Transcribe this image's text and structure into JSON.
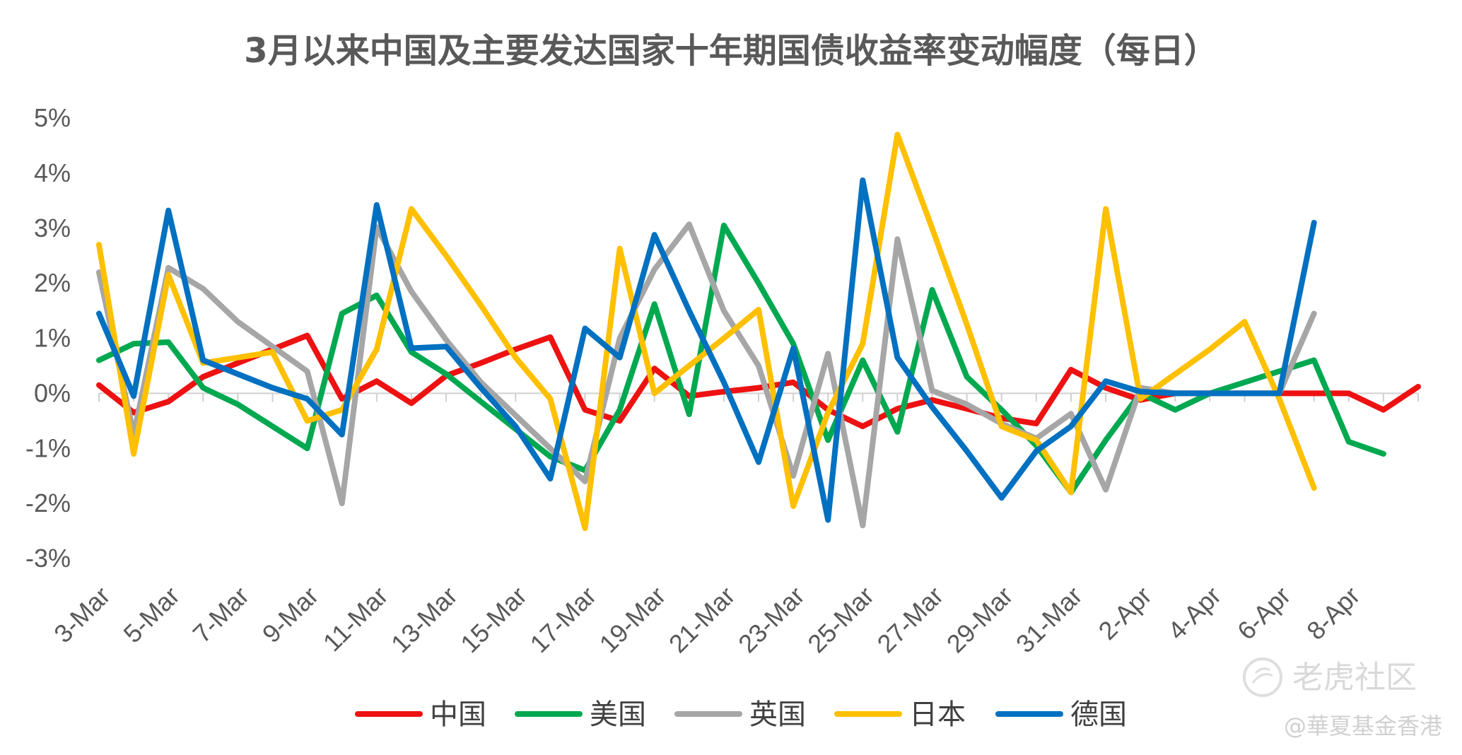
{
  "chart_data": {
    "type": "line",
    "title": "3月以来中国及主要发达国家十年期国债收益率变动幅度（每日）",
    "xlabel": "",
    "ylabel": "",
    "ylim": [
      -3,
      5
    ],
    "y_ticks": [
      "5%",
      "4%",
      "3%",
      "2%",
      "1%",
      "0%",
      "-1%",
      "-2%",
      "-3%"
    ],
    "x_tick_labels": [
      "3-Mar",
      "5-Mar",
      "7-Mar",
      "9-Mar",
      "11-Mar",
      "13-Mar",
      "15-Mar",
      "17-Mar",
      "19-Mar",
      "21-Mar",
      "23-Mar",
      "25-Mar",
      "27-Mar",
      "29-Mar",
      "31-Mar",
      "2-Apr",
      "4-Apr",
      "6-Apr",
      "8-Apr"
    ],
    "legend_position": "bottom",
    "grid": false,
    "series": [
      {
        "name": "中国",
        "color": "#ee1111",
        "points": [
          [
            0,
            0.15
          ],
          [
            1,
            -0.35
          ],
          [
            2,
            -0.15
          ],
          [
            3,
            0.3
          ],
          [
            4,
            0.55
          ],
          [
            5,
            0.8
          ],
          [
            6,
            1.05
          ],
          [
            7,
            -0.1
          ],
          [
            8,
            0.22
          ],
          [
            9,
            -0.18
          ],
          [
            10,
            0.32
          ],
          [
            11,
            0.55
          ],
          [
            12,
            0.8
          ],
          [
            13,
            1.02
          ],
          [
            14,
            -0.3
          ],
          [
            15,
            -0.5
          ],
          [
            16,
            0.45
          ],
          [
            17,
            -0.05
          ],
          [
            18,
            0.03
          ],
          [
            19,
            0.1
          ],
          [
            20,
            0.2
          ],
          [
            21,
            -0.3
          ],
          [
            22,
            -0.6
          ],
          [
            23,
            -0.28
          ],
          [
            24,
            -0.12
          ],
          [
            25,
            -0.28
          ],
          [
            26,
            -0.45
          ],
          [
            27,
            -0.55
          ],
          [
            28,
            0.43
          ],
          [
            29,
            0.1
          ],
          [
            30,
            -0.12
          ],
          [
            31,
            0
          ],
          [
            32,
            0
          ],
          [
            33,
            0
          ],
          [
            34,
            0
          ],
          [
            35,
            0
          ],
          [
            36,
            0
          ],
          [
            37,
            -0.3
          ],
          [
            38,
            0.12
          ]
        ]
      },
      {
        "name": "美国",
        "color": "#00a850",
        "points": [
          [
            0,
            0.6
          ],
          [
            1,
            0.9
          ],
          [
            2,
            0.93
          ],
          [
            3,
            0.1
          ],
          [
            4,
            -0.2
          ],
          [
            5,
            -0.6
          ],
          [
            6,
            -1.0
          ],
          [
            7,
            1.45
          ],
          [
            8,
            1.78
          ],
          [
            9,
            0.75
          ],
          [
            10,
            0.35
          ],
          [
            11,
            -0.15
          ],
          [
            12,
            -0.65
          ],
          [
            13,
            -1.15
          ],
          [
            14,
            -1.4
          ],
          [
            15,
            -0.3
          ],
          [
            16,
            1.62
          ],
          [
            17,
            -0.38
          ],
          [
            18,
            3.05
          ],
          [
            19,
            2.0
          ],
          [
            20,
            0.9
          ],
          [
            21,
            -0.85
          ],
          [
            22,
            0.6
          ],
          [
            23,
            -0.7
          ],
          [
            24,
            1.88
          ],
          [
            25,
            0.3
          ],
          [
            26,
            -0.3
          ],
          [
            27,
            -0.95
          ],
          [
            28,
            -1.8
          ],
          [
            29,
            -0.85
          ],
          [
            30,
            0
          ],
          [
            31,
            -0.3
          ],
          [
            32,
            0
          ],
          [
            33,
            0.2
          ],
          [
            34,
            0.4
          ],
          [
            35,
            0.6
          ],
          [
            36,
            -0.88
          ],
          [
            37,
            -1.1
          ]
        ]
      },
      {
        "name": "英国",
        "color": "#a6a6a6",
        "points": [
          [
            0,
            2.2
          ],
          [
            1,
            -0.75
          ],
          [
            2,
            2.28
          ],
          [
            3,
            1.9
          ],
          [
            4,
            1.3
          ],
          [
            5,
            0.85
          ],
          [
            6,
            0.4
          ],
          [
            7,
            -2.0
          ],
          [
            8,
            3.02
          ],
          [
            9,
            1.85
          ],
          [
            10,
            0.97
          ],
          [
            11,
            0.2
          ],
          [
            12,
            -0.4
          ],
          [
            13,
            -1.0
          ],
          [
            14,
            -1.6
          ],
          [
            15,
            1.0
          ],
          [
            16,
            2.25
          ],
          [
            17,
            3.07
          ],
          [
            18,
            1.5
          ],
          [
            19,
            0.5
          ],
          [
            20,
            -1.5
          ],
          [
            21,
            0.72
          ],
          [
            22,
            -2.4
          ],
          [
            23,
            2.8
          ],
          [
            24,
            0.05
          ],
          [
            25,
            -0.2
          ],
          [
            26,
            -0.55
          ],
          [
            27,
            -0.82
          ],
          [
            28,
            -0.37
          ],
          [
            29,
            -1.75
          ],
          [
            30,
            0.1
          ],
          [
            31,
            0
          ],
          [
            32,
            0
          ],
          [
            33,
            0
          ],
          [
            34,
            0
          ],
          [
            35,
            1.45
          ]
        ]
      },
      {
        "name": "日本",
        "color": "#ffc000",
        "points": [
          [
            0,
            2.7
          ],
          [
            1,
            -1.1
          ],
          [
            2,
            2.15
          ],
          [
            3,
            0.55
          ],
          [
            4,
            0.65
          ],
          [
            5,
            0.75
          ],
          [
            6,
            -0.5
          ],
          [
            7,
            -0.3
          ],
          [
            8,
            0.8
          ],
          [
            9,
            3.35
          ],
          [
            10,
            2.5
          ],
          [
            11,
            1.6
          ],
          [
            12,
            0.65
          ],
          [
            13,
            -0.1
          ],
          [
            14,
            -2.45
          ],
          [
            15,
            2.63
          ],
          [
            16,
            0
          ],
          [
            17,
            0.5
          ],
          [
            18,
            1.0
          ],
          [
            19,
            1.52
          ],
          [
            20,
            -2.05
          ],
          [
            21,
            -0.35
          ],
          [
            22,
            0.9
          ],
          [
            23,
            4.7
          ],
          [
            24,
            3.0
          ],
          [
            25,
            1.25
          ],
          [
            26,
            -0.6
          ],
          [
            27,
            -0.85
          ],
          [
            28,
            -1.8
          ],
          [
            29,
            3.35
          ],
          [
            30,
            -0.1
          ],
          [
            31,
            0.35
          ],
          [
            32,
            0.8
          ],
          [
            33,
            1.3
          ],
          [
            34,
            -0.1
          ],
          [
            35,
            -1.72
          ]
        ]
      },
      {
        "name": "德国",
        "color": "#0070c0",
        "points": [
          [
            0,
            1.45
          ],
          [
            1,
            -0.05
          ],
          [
            2,
            3.32
          ],
          [
            3,
            0.6
          ],
          [
            4,
            0.35
          ],
          [
            5,
            0.1
          ],
          [
            6,
            -0.1
          ],
          [
            7,
            -0.75
          ],
          [
            8,
            3.42
          ],
          [
            9,
            0.82
          ],
          [
            10,
            0.85
          ],
          [
            11,
            0.1
          ],
          [
            12,
            -0.6
          ],
          [
            13,
            -1.55
          ],
          [
            14,
            1.18
          ],
          [
            15,
            0.65
          ],
          [
            16,
            2.88
          ],
          [
            17,
            1.5
          ],
          [
            18,
            0.2
          ],
          [
            19,
            -1.25
          ],
          [
            20,
            0.82
          ],
          [
            21,
            -2.3
          ],
          [
            22,
            3.87
          ],
          [
            23,
            0.65
          ],
          [
            24,
            -0.25
          ],
          [
            25,
            -1.05
          ],
          [
            26,
            -1.9
          ],
          [
            27,
            -1.05
          ],
          [
            28,
            -0.6
          ],
          [
            29,
            0.22
          ],
          [
            30,
            0.03
          ],
          [
            31,
            0
          ],
          [
            32,
            0
          ],
          [
            33,
            0
          ],
          [
            34,
            0
          ],
          [
            35,
            3.1
          ]
        ]
      }
    ]
  },
  "watermark": {
    "brand": "老虎社区",
    "author": "@華夏基金香港"
  }
}
